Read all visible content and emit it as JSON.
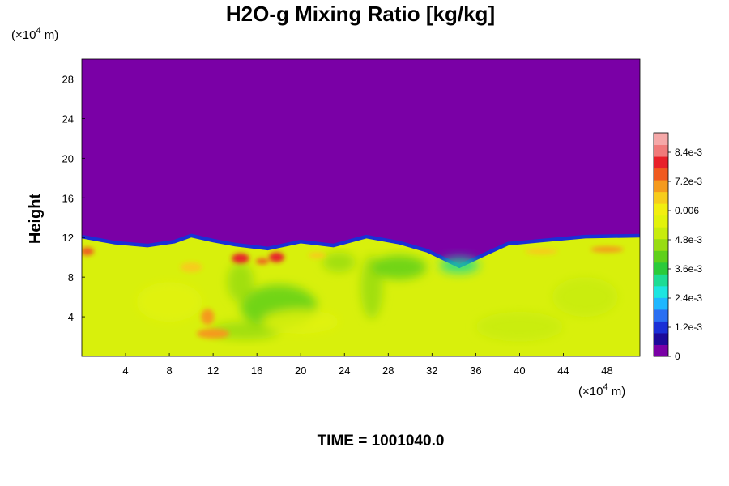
{
  "chart_data": {
    "type": "heatmap",
    "title": "H2O-g Mixing Ratio [kg/kg]",
    "ylabel": "Height",
    "xlabel": "",
    "x_unit": [
      "(×10",
      "4",
      " m)"
    ],
    "y_unit": [
      "(×10",
      "4",
      " m)"
    ],
    "xlim": [
      0,
      51
    ],
    "ylim": [
      0,
      30
    ],
    "x_ticks": [
      {
        "v": 4,
        "label": "4"
      },
      {
        "v": 8,
        "label": "8"
      },
      {
        "v": 12,
        "label": "12"
      },
      {
        "v": 16,
        "label": "16"
      },
      {
        "v": 20,
        "label": "20"
      },
      {
        "v": 24,
        "label": "24"
      },
      {
        "v": 28,
        "label": "28"
      },
      {
        "v": 32,
        "label": "32"
      },
      {
        "v": 36,
        "label": "36"
      },
      {
        "v": 40,
        "label": "40"
      },
      {
        "v": 44,
        "label": "44"
      },
      {
        "v": 48,
        "label": "48"
      }
    ],
    "y_ticks": [
      {
        "v": 4,
        "label": "4"
      },
      {
        "v": 8,
        "label": "8"
      },
      {
        "v": 12,
        "label": "12"
      },
      {
        "v": 16,
        "label": "16"
      },
      {
        "v": 20,
        "label": "20"
      },
      {
        "v": 24,
        "label": "24"
      },
      {
        "v": 28,
        "label": "28"
      }
    ],
    "colorbar": {
      "range": [
        0,
        0.0092
      ],
      "ticks": [
        {
          "v": 0,
          "label": "0"
        },
        {
          "v": 0.0012,
          "label": "1.2e-3"
        },
        {
          "v": 0.0024,
          "label": "2.4e-3"
        },
        {
          "v": 0.0036,
          "label": "3.6e-3"
        },
        {
          "v": 0.0048,
          "label": "4.8e-3"
        },
        {
          "v": 0.006,
          "label": "0.006"
        },
        {
          "v": 0.0072,
          "label": "7.2e-3"
        },
        {
          "v": 0.0084,
          "label": "8.4e-3"
        }
      ],
      "colors": [
        "#7a00a6",
        "#1d0a9a",
        "#1a2fd6",
        "#2a6ff2",
        "#1fb7ff",
        "#1de5e0",
        "#1ddc94",
        "#2acb3a",
        "#5fd01a",
        "#98dc12",
        "#c8ec0e",
        "#e2f20c",
        "#f2ee10",
        "#f7cc1c",
        "#f59a1e",
        "#f05a20",
        "#e8202a",
        "#f07a7a",
        "#f5a8a8"
      ]
    },
    "moisture_top_profile": [
      {
        "x": 0,
        "z": 11.9
      },
      {
        "x": 3,
        "z": 11.3
      },
      {
        "x": 6,
        "z": 11.0
      },
      {
        "x": 8.5,
        "z": 11.4
      },
      {
        "x": 10,
        "z": 12.0
      },
      {
        "x": 12,
        "z": 11.5
      },
      {
        "x": 14,
        "z": 11.1
      },
      {
        "x": 17,
        "z": 10.7
      },
      {
        "x": 20,
        "z": 11.4
      },
      {
        "x": 23,
        "z": 11.0
      },
      {
        "x": 26,
        "z": 11.9
      },
      {
        "x": 29,
        "z": 11.3
      },
      {
        "x": 31.5,
        "z": 10.5
      },
      {
        "x": 34.5,
        "z": 8.9
      },
      {
        "x": 37,
        "z": 10.2
      },
      {
        "x": 39,
        "z": 11.2
      },
      {
        "x": 42,
        "z": 11.5
      },
      {
        "x": 46,
        "z": 11.9
      },
      {
        "x": 51,
        "z": 12.0
      }
    ],
    "surface_value": 0.0062,
    "upper_value": 0
  },
  "footer": {
    "time_label": "TIME = 1001040.0"
  }
}
